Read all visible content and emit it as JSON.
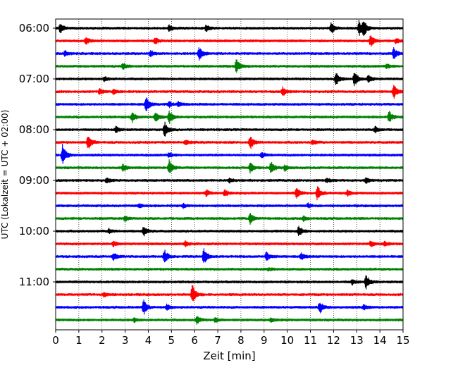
{
  "chart_data": {
    "type": "line",
    "title": "",
    "xlabel": "Zeit  [min]",
    "ylabel": "UTC (Lokalzeit = UTC + 02:00)",
    "xlim": [
      0,
      15
    ],
    "x_ticks": [
      0,
      1,
      2,
      3,
      4,
      5,
      6,
      7,
      8,
      9,
      10,
      11,
      12,
      13,
      14,
      15
    ],
    "y_ticks": [
      "06:00",
      "07:00",
      "08:00",
      "09:00",
      "10:00",
      "11:00"
    ],
    "grid_x": true,
    "traces_per_hour": 4,
    "minutes_per_trace": 15,
    "color_cycle": [
      "#000000",
      "#ff0000",
      "#0000ff",
      "#008000"
    ],
    "traces": [
      {
        "label": "06:00",
        "events": [
          [
            0.2,
            1
          ],
          [
            4.9,
            0.6
          ],
          [
            6.5,
            0.7
          ],
          [
            11.9,
            1.1
          ],
          [
            13.1,
            1.6
          ],
          [
            13.3,
            1.5
          ]
        ]
      },
      {
        "label": "06:15",
        "events": [
          [
            1.3,
            0.7
          ],
          [
            4.3,
            0.6
          ],
          [
            13.6,
            1.2
          ],
          [
            14.7,
            0.5
          ]
        ]
      },
      {
        "label": "06:30",
        "events": [
          [
            0.4,
            0.5
          ],
          [
            4.1,
            0.6
          ],
          [
            6.2,
            1.4
          ],
          [
            14.6,
            1.1
          ]
        ]
      },
      {
        "label": "06:45",
        "events": [
          [
            2.9,
            0.6
          ],
          [
            7.8,
            1.5
          ],
          [
            14.3,
            0.5
          ]
        ]
      },
      {
        "label": "07:00",
        "events": [
          [
            2.1,
            0.5
          ],
          [
            12.1,
            1.3
          ],
          [
            12.9,
            1.4
          ],
          [
            13.5,
            0.7
          ]
        ]
      },
      {
        "label": "07:15",
        "events": [
          [
            1.9,
            0.6
          ],
          [
            2.5,
            0.5
          ],
          [
            9.8,
            0.9
          ],
          [
            14.6,
            1.4
          ]
        ]
      },
      {
        "label": "07:30",
        "events": [
          [
            3.9,
            1.6
          ],
          [
            4.9,
            0.6
          ],
          [
            5.3,
            0.5
          ]
        ]
      },
      {
        "label": "07:45",
        "events": [
          [
            3.3,
            1.1
          ],
          [
            4.3,
            1.1
          ],
          [
            4.9,
            1.4
          ],
          [
            14.4,
            1.1
          ]
        ]
      },
      {
        "label": "08:00",
        "events": [
          [
            2.6,
            0.6
          ],
          [
            4.7,
            1.6
          ],
          [
            13.8,
            0.7
          ]
        ]
      },
      {
        "label": "08:15",
        "events": [
          [
            1.4,
            1.5
          ],
          [
            5.6,
            0.5
          ],
          [
            8.4,
            1.4
          ],
          [
            11.1,
            0.5
          ]
        ]
      },
      {
        "label": "08:30",
        "events": [
          [
            0.3,
            2.2
          ],
          [
            4.9,
            0.5
          ],
          [
            8.9,
            0.5
          ]
        ]
      },
      {
        "label": "08:45",
        "events": [
          [
            2.9,
            0.7
          ],
          [
            4.9,
            1.5
          ],
          [
            8.4,
            1.1
          ],
          [
            9.3,
            1.3
          ],
          [
            9.9,
            0.6
          ]
        ]
      },
      {
        "label": "09:00",
        "events": [
          [
            2.2,
            0.5
          ],
          [
            7.5,
            0.5
          ],
          [
            11.7,
            0.4
          ],
          [
            13.4,
            0.5
          ]
        ]
      },
      {
        "label": "09:15",
        "events": [
          [
            6.5,
            0.6
          ],
          [
            7.3,
            0.7
          ],
          [
            10.4,
            1.2
          ],
          [
            11.3,
            1.5
          ],
          [
            12.6,
            0.6
          ]
        ]
      },
      {
        "label": "09:30",
        "events": [
          [
            3.6,
            0.4
          ],
          [
            5.5,
            0.4
          ],
          [
            10.9,
            0.4
          ]
        ]
      },
      {
        "label": "09:45",
        "events": [
          [
            3.0,
            0.5
          ],
          [
            8.4,
            1.2
          ],
          [
            10.7,
            0.5
          ]
        ]
      },
      {
        "label": "10:00",
        "events": [
          [
            2.3,
            0.5
          ],
          [
            3.8,
            1.0
          ],
          [
            10.5,
            1.1
          ]
        ]
      },
      {
        "label": "10:15",
        "events": [
          [
            2.5,
            0.5
          ],
          [
            5.6,
            0.5
          ],
          [
            13.6,
            0.6
          ],
          [
            14.2,
            0.5
          ]
        ]
      },
      {
        "label": "10:30",
        "events": [
          [
            2.5,
            0.8
          ],
          [
            4.7,
            1.4
          ],
          [
            6.4,
            1.6
          ],
          [
            9.1,
            0.9
          ],
          [
            10.6,
            0.7
          ]
        ]
      },
      {
        "label": "10:45",
        "events": [
          [
            9.2,
            0.3
          ]
        ]
      },
      {
        "label": "11:00",
        "events": [
          [
            12.8,
            0.5
          ],
          [
            13.4,
            1.5
          ]
        ]
      },
      {
        "label": "11:15",
        "events": [
          [
            2.1,
            0.5
          ],
          [
            5.9,
            2.0
          ]
        ]
      },
      {
        "label": "11:30",
        "events": [
          [
            3.8,
            1.5
          ],
          [
            4.8,
            0.6
          ],
          [
            11.4,
            1.3
          ],
          [
            13.3,
            0.5
          ]
        ]
      },
      {
        "label": "11:45",
        "events": [
          [
            3.4,
            0.4
          ],
          [
            6.1,
            0.8
          ],
          [
            6.9,
            0.5
          ],
          [
            9.3,
            0.4
          ]
        ]
      }
    ]
  }
}
